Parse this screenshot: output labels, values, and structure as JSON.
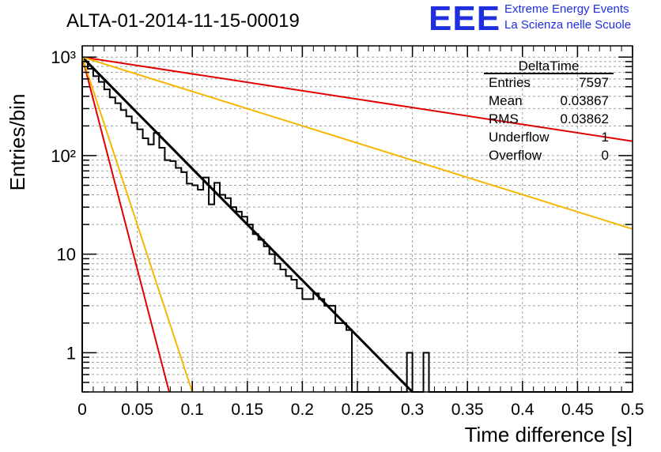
{
  "branding": {
    "logo_text": "EEE",
    "line1": "Extreme Energy Events",
    "line2": "La Scienza nelle Scuole"
  },
  "stats_box": {
    "title": "DeltaTime",
    "rows": [
      {
        "label": "Entries",
        "value": "7597"
      },
      {
        "label": "Mean",
        "value": "0.03867"
      },
      {
        "label": "RMS",
        "value": "0.03862"
      },
      {
        "label": "Underflow",
        "value": "1"
      },
      {
        "label": "Overflow",
        "value": "0"
      }
    ]
  },
  "colors": {
    "black_fit": "#000000",
    "red": "#e00000",
    "orange": "#f5b800",
    "grid": "#a0a0a0"
  },
  "chart_data": {
    "type": "histogram",
    "title": "ALTA-01-2014-11-15-00019",
    "xlabel": "Time difference [s]",
    "ylabel": "Entries/bin",
    "xlim": [
      0,
      0.5
    ],
    "ylim": [
      0.4,
      1300
    ],
    "y_log_scale": true,
    "grid": true,
    "x_ticks": [
      0,
      0.05,
      0.1,
      0.15,
      0.2,
      0.25,
      0.3,
      0.35,
      0.4,
      0.45,
      0.5
    ],
    "x_tick_labels": [
      "0",
      "0.05",
      "0.1",
      "0.15",
      "0.2",
      "0.25",
      "0.3",
      "0.35",
      "0.4",
      "0.45",
      "0.5"
    ],
    "y_ticks": [
      1,
      10,
      100,
      1000
    ],
    "y_tick_labels": [
      "1",
      "10",
      "10²",
      "10³"
    ],
    "bin_width": 0.005,
    "bin_values": [
      900,
      760,
      640,
      560,
      470,
      390,
      340,
      290,
      250,
      215,
      185,
      150,
      130,
      170,
      120,
      90,
      88,
      75,
      68,
      52,
      50,
      45,
      60,
      32,
      53,
      40,
      37,
      30,
      27,
      24,
      20,
      16,
      14,
      12,
      10,
      8,
      7,
      6,
      5.5,
      4.5,
      3.5,
      3.5,
      4,
      3.5,
      3,
      3,
      2,
      2,
      1.7,
      0,
      0,
      0,
      0,
      0,
      0,
      0,
      0,
      0,
      0,
      1,
      0,
      0,
      1,
      0,
      0,
      0,
      0,
      0,
      0,
      0,
      0,
      0,
      0,
      0,
      0,
      0,
      0,
      0,
      0,
      0,
      0,
      0,
      0,
      0,
      0,
      0,
      0,
      0,
      0,
      0,
      0,
      0,
      0,
      0,
      0,
      0,
      0,
      0,
      0,
      0
    ],
    "curves": [
      {
        "color": "#000000",
        "points": [
          [
            0,
            1000
          ],
          [
            0.3,
            0.4
          ]
        ]
      },
      {
        "color": "#e00000",
        "points": [
          [
            0,
            1000
          ],
          [
            0.5,
            140
          ]
        ]
      },
      {
        "color": "#f5b800",
        "points": [
          [
            0,
            1000
          ],
          [
            0.5,
            18
          ]
        ]
      },
      {
        "color": "#e00000",
        "points": [
          [
            0,
            1000
          ],
          [
            0.079,
            0.4
          ]
        ]
      },
      {
        "color": "#f5b800",
        "points": [
          [
            0,
            1000
          ],
          [
            0.1,
            0.4
          ]
        ]
      }
    ]
  }
}
